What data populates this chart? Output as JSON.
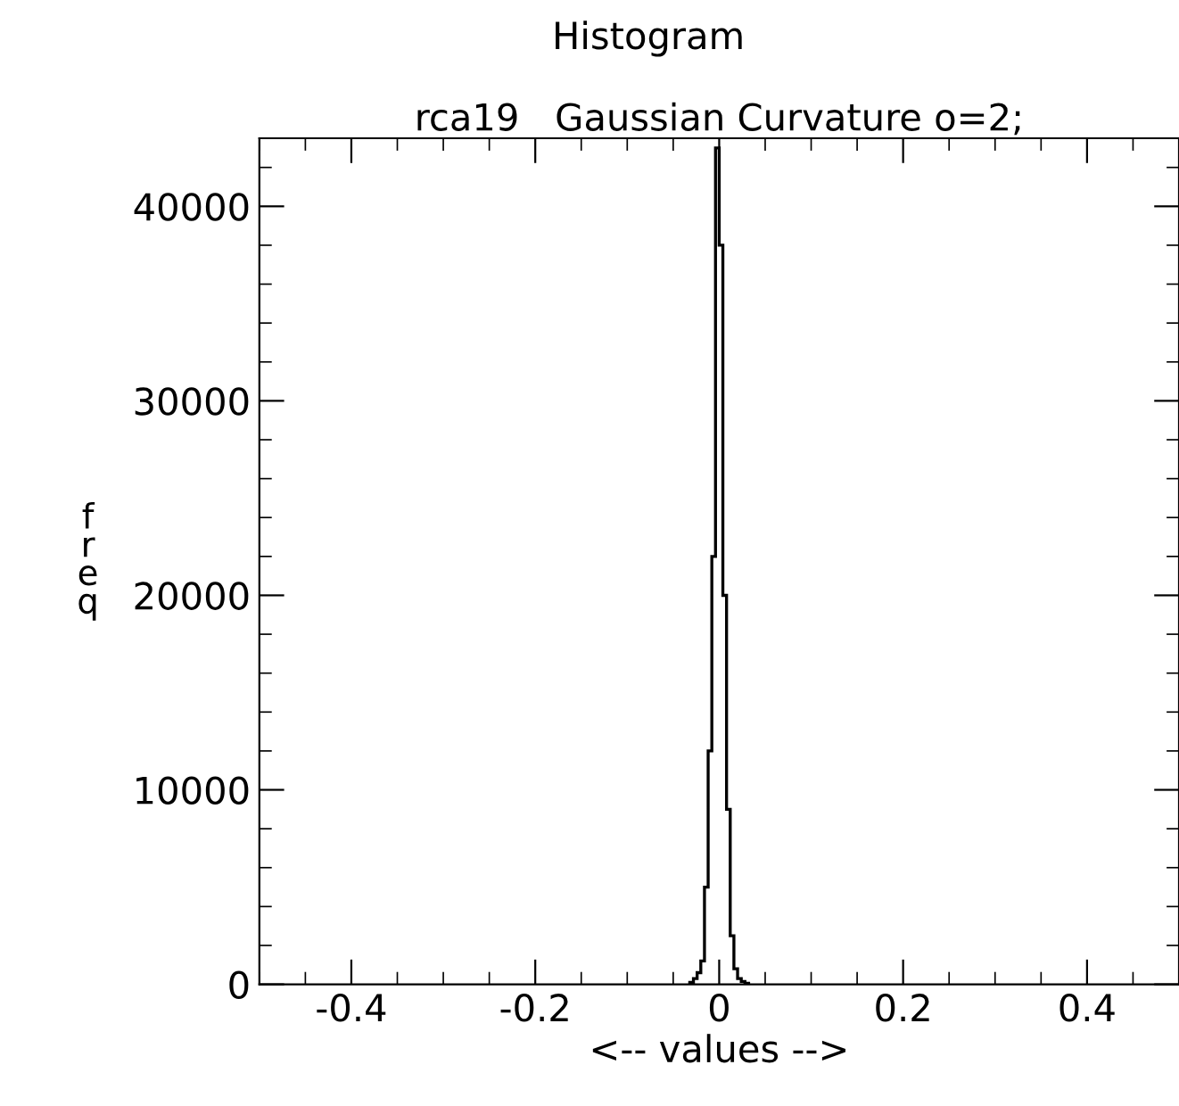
{
  "chart_data": {
    "type": "histogram",
    "title": "Histogram",
    "subtitle": "rca19   Gaussian Curvature o=2;",
    "xlabel": "<-- values -->",
    "ylabel": "freq",
    "bins": [
      -0.032,
      -0.028,
      -0.024,
      -0.02,
      -0.016,
      -0.012,
      -0.008,
      -0.004,
      0,
      0.004,
      0.008,
      0.012,
      0.016,
      0.02,
      0.024,
      0.028,
      0.032
    ],
    "values": [
      100,
      300,
      600,
      1200,
      5000,
      12000,
      22000,
      43000,
      38000,
      20000,
      9000,
      2500,
      800,
      300,
      150,
      50
    ],
    "color": "#000000",
    "xlim": [
      -0.5,
      0.5
    ],
    "xticks": [
      {
        "value": -0.4,
        "label": "-0.4"
      },
      {
        "value": -0.2,
        "label": "-0.2"
      },
      0,
      0.2,
      0.4
    ],
    "ylim": [
      0,
      43500
    ],
    "yticks": [
      0,
      10000,
      20000,
      30000,
      40000
    ],
    "grid": false
  }
}
